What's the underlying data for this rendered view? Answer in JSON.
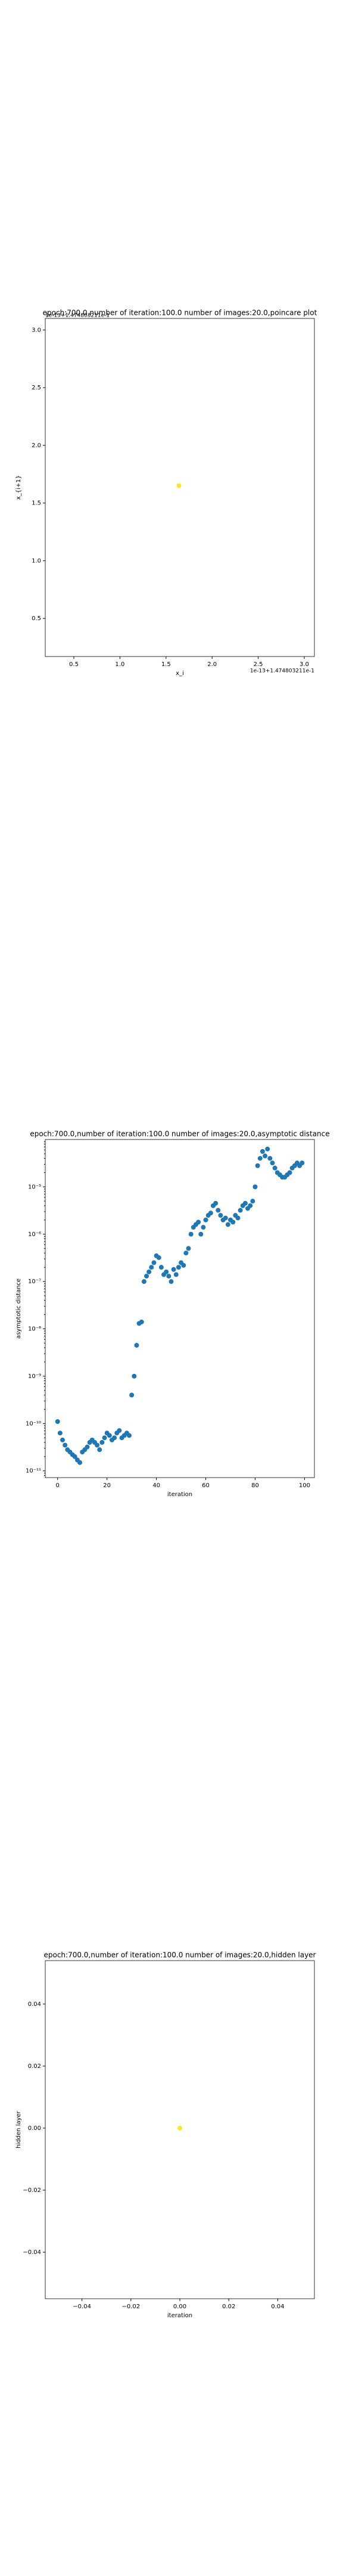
{
  "chart_data": [
    {
      "type": "scatter",
      "title": "epoch:700.0,number of iteration:100.0 number of images:20.0,poincare plot",
      "xlabel": "x_i",
      "ylabel": "x_{i+1}",
      "x_offset_text": "1e-13+1.474803211e-1",
      "y_offset_text": "1e-13+1.474803211e-1",
      "x": [
        1.64
      ],
      "values": [
        1.65
      ],
      "color": "#fde725",
      "xlim": [
        0.19,
        3.11
      ],
      "ylim": [
        0.17,
        3.1
      ],
      "xticks": [
        0.5,
        {
          "value": 1,
          "label": "1.0"
        },
        1.5,
        {
          "value": 2,
          "label": "2.0"
        },
        2.5,
        {
          "value": 3,
          "label": "3.0"
        }
      ],
      "yticks": [
        0.5,
        {
          "value": 1,
          "label": "1.0"
        },
        1.5,
        {
          "value": 2,
          "label": "2.0"
        },
        2.5,
        {
          "value": 3,
          "label": "3.0"
        }
      ]
    },
    {
      "type": "scatter",
      "title": "epoch:700.0,number of iteration:100.0  number of images:20.0,asymptotic distance",
      "xlabel": "iteration",
      "ylabel": "asymptotic distance",
      "yscale": "log",
      "x": [
        0,
        1,
        2,
        3,
        4,
        5,
        6,
        7,
        8,
        9,
        10,
        11,
        12,
        13,
        14,
        15,
        16,
        17,
        18,
        19,
        20,
        21,
        22,
        23,
        24,
        25,
        26,
        27,
        28,
        29,
        30,
        31,
        32,
        33,
        34,
        35,
        36,
        37,
        38,
        39,
        40,
        41,
        42,
        43,
        44,
        45,
        46,
        47,
        48,
        49,
        50,
        51,
        52,
        53,
        54,
        55,
        56,
        57,
        58,
        59,
        60,
        61,
        62,
        63,
        64,
        65,
        66,
        67,
        68,
        69,
        70,
        71,
        72,
        73,
        74,
        75,
        76,
        77,
        78,
        79,
        80,
        81,
        82,
        83,
        84,
        85,
        86,
        87,
        88,
        89,
        90,
        91,
        92,
        93,
        94,
        95,
        96,
        97,
        98,
        99
      ],
      "values": [
        1.1e-10,
        6.3e-11,
        4.5e-11,
        3.5e-11,
        2.8e-11,
        2.5e-11,
        2.2e-11,
        2e-11,
        1.7e-11,
        1.5e-11,
        2.5e-11,
        2.8e-11,
        3.2e-11,
        4e-11,
        4.5e-11,
        4e-11,
        3.5e-11,
        2.8e-11,
        4e-11,
        5e-11,
        6.3e-11,
        5.6e-11,
        4.5e-11,
        5e-11,
        6.3e-11,
        7.1e-11,
        5e-11,
        5.6e-11,
        6.3e-11,
        5.6e-11,
        4e-10,
        1e-09,
        4.5e-09,
        1.3e-08,
        1.4e-08,
        1e-07,
        1.3e-07,
        1.6e-07,
        2e-07,
        2.5e-07,
        3.5e-07,
        3.2e-07,
        2e-07,
        1.4e-07,
        1.6e-07,
        1.3e-07,
        1e-07,
        1.8e-07,
        1.4e-07,
        2e-07,
        2.5e-07,
        2.2e-07,
        4e-07,
        5e-07,
        1e-06,
        1.4e-06,
        1.6e-06,
        1.8e-06,
        1e-06,
        1.4e-06,
        2e-06,
        2.5e-06,
        2.8e-06,
        4e-06,
        4.5e-06,
        3.2e-06,
        2.5e-06,
        2e-06,
        2.2e-06,
        1.6e-06,
        2e-06,
        1.8e-06,
        2.5e-06,
        2.2e-06,
        3.2e-06,
        4e-06,
        4.5e-06,
        3.5e-06,
        4e-06,
        5e-06,
        1e-05,
        2.8e-05,
        4e-05,
        5.6e-05,
        4.5e-05,
        6.3e-05,
        4e-05,
        3.2e-05,
        2.5e-05,
        2e-05,
        1.8e-05,
        1.6e-05,
        1.6e-05,
        1.8e-05,
        2e-05,
        2.5e-05,
        2.8e-05,
        3.2e-05,
        2.8e-05,
        3.2e-05
      ],
      "color": "#1f77b4",
      "xlim": [
        -5,
        104
      ],
      "ylim": [
        7.2e-12,
        0.0001
      ],
      "xticks": [
        0,
        20,
        40,
        60,
        80,
        100
      ],
      "yticks": [
        {
          "value": 1e-11,
          "label": "10⁻¹¹"
        },
        {
          "value": 1e-10,
          "label": "10⁻¹⁰"
        },
        {
          "value": 1e-09,
          "label": "10⁻⁹"
        },
        {
          "value": 1e-08,
          "label": "10⁻⁸"
        },
        {
          "value": 1e-07,
          "label": "10⁻⁷"
        },
        {
          "value": 1e-06,
          "label": "10⁻⁶"
        },
        {
          "value": 1e-05,
          "label": "10⁻⁵"
        }
      ]
    },
    {
      "type": "scatter",
      "title": "epoch:700.0,number of iteration:100.0  number of images:20.0,hidden layer",
      "xlabel": "iteration",
      "ylabel": "hidden layer",
      "x": [
        0
      ],
      "values": [
        0
      ],
      "color": "#fde725",
      "xlim": [
        -0.055,
        0.055
      ],
      "ylim": [
        -0.055,
        0.054
      ],
      "xticks": [
        {
          "value": -0.04,
          "label": "−0.04"
        },
        {
          "value": -0.02,
          "label": "−0.02"
        },
        {
          "value": 0,
          "label": "0.00"
        },
        0.02,
        0.04
      ],
      "yticks": [
        {
          "value": -0.04,
          "label": "−0.04"
        },
        {
          "value": -0.02,
          "label": "−0.02"
        },
        {
          "value": 0,
          "label": "0.00"
        },
        0.02,
        0.04
      ]
    }
  ]
}
